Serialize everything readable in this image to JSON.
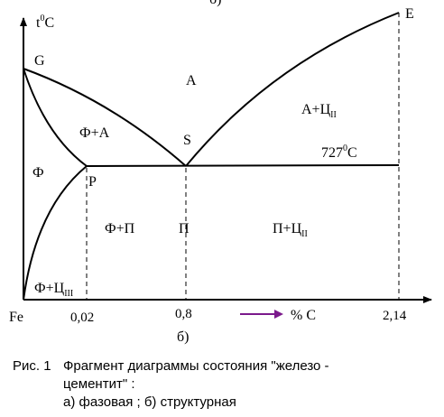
{
  "diagram": {
    "top_label": "б)",
    "axis": {
      "y_label_base": "t",
      "y_label_sup": "0",
      "y_label_unit": "C",
      "x_origin": "Fe",
      "x_label": "% C",
      "ticks": [
        "0,02",
        "0,8",
        "2,14"
      ]
    },
    "points": {
      "G": "G",
      "S": "S",
      "P": "P",
      "E": "E"
    },
    "regions": {
      "austenite": "A",
      "ferrite_austenite": "Ф+А",
      "austenite_cementite_base": "А+Ц",
      "austenite_cementite_sub": "II",
      "ferrite": "Ф",
      "ferrite_pearlite": "Ф+П",
      "pearlite": "П",
      "pearlite_cementite_base": "П+Ц",
      "pearlite_cementite_sub": "II",
      "ferrite_cementite_base": "Ф+Ц",
      "ferrite_cementite_sub": "III"
    },
    "temperature": {
      "value": "727",
      "sup": "0",
      "unit": "C"
    },
    "colors": {
      "arrow": "#7b1a8c"
    }
  },
  "caption": {
    "number": "Рис. 1",
    "line1": "Фрагмент диаграммы состояния \"железо -",
    "line2": "цементит\" :",
    "line3": "а) фазовая ; б) структурная"
  }
}
